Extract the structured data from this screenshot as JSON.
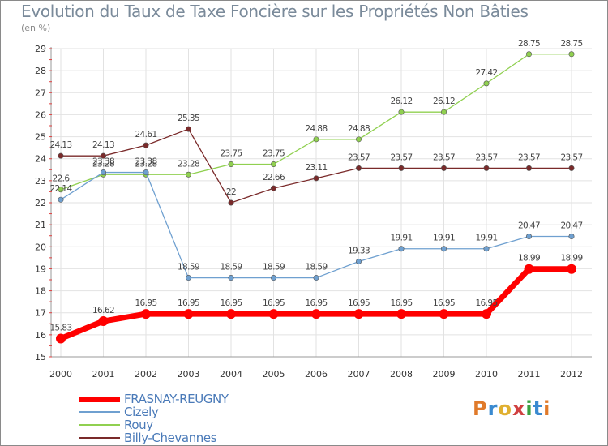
{
  "chart_data": {
    "type": "line",
    "title": "Evolution du Taux de Taxe Foncière sur les Propriétés Non Bâties",
    "ylabel": "(en %)",
    "xlabel": "",
    "x": [
      "2000",
      "2001",
      "2002",
      "2003",
      "2004",
      "2005",
      "2006",
      "2007",
      "2008",
      "2009",
      "2010",
      "2011",
      "2012"
    ],
    "ylim": [
      15,
      29
    ],
    "yticks": [
      "15",
      "16",
      "17",
      "18",
      "19",
      "20",
      "21",
      "22",
      "23",
      "24",
      "25",
      "26",
      "27",
      "28",
      "29"
    ],
    "grid": true,
    "legend_position": "bottom-left",
    "series": [
      {
        "name": "FRASNAY-REUGNY",
        "color": "#ff0000",
        "values": [
          15.83,
          16.62,
          16.95,
          16.95,
          16.95,
          16.95,
          16.95,
          16.95,
          16.95,
          16.95,
          16.95,
          18.99,
          18.99
        ],
        "labels": [
          "15.83",
          "16.62",
          "16.95",
          "16.95",
          "16.95",
          "16.95",
          "16.95",
          "16.95",
          "16.95",
          "16.95",
          "16.95",
          "18.99",
          "18.99"
        ]
      },
      {
        "name": "Cizely",
        "color": "#6fa0d0",
        "values": [
          22.14,
          23.38,
          23.38,
          18.59,
          18.59,
          18.59,
          18.59,
          19.33,
          19.91,
          19.91,
          19.91,
          20.47,
          20.47
        ],
        "labels": [
          "22.14",
          "23.38",
          "23.38",
          "18.59",
          "18.59",
          "18.59",
          "18.59",
          "19.33",
          "19.91",
          "19.91",
          "19.91",
          "20.47",
          "20.47"
        ]
      },
      {
        "name": "Rouy",
        "color": "#90d050",
        "values": [
          22.6,
          23.28,
          23.28,
          23.28,
          23.75,
          23.75,
          24.88,
          24.88,
          26.12,
          26.12,
          27.42,
          28.75,
          28.75
        ],
        "labels": [
          "22.6",
          "23.28",
          "23.28",
          "23.28",
          "23.75",
          "23.75",
          "24.88",
          "24.88",
          "26.12",
          "26.12",
          "27.42",
          "28.75",
          "28.75"
        ]
      },
      {
        "name": "Billy-Chevannes",
        "color": "#7a2a2a",
        "values": [
          24.13,
          24.13,
          24.61,
          25.35,
          22,
          22.66,
          23.11,
          23.57,
          23.57,
          23.57,
          23.57,
          23.57,
          23.57
        ],
        "labels": [
          "24.13",
          "24.13",
          "24.61",
          "25.35",
          "22",
          "22.66",
          "23.11",
          "23.57",
          "23.57",
          "23.57",
          "23.57",
          "23.57",
          "23.57"
        ]
      }
    ]
  },
  "logo": {
    "text": "Proxiti",
    "letters": [
      "P",
      "r",
      "o",
      "x",
      "i",
      "t",
      "i"
    ],
    "colors": [
      "#e07a2a",
      "#3a8ad0",
      "#e0b030",
      "#d04040",
      "#3aa040",
      "#3a8ad0",
      "#e07a2a"
    ]
  }
}
